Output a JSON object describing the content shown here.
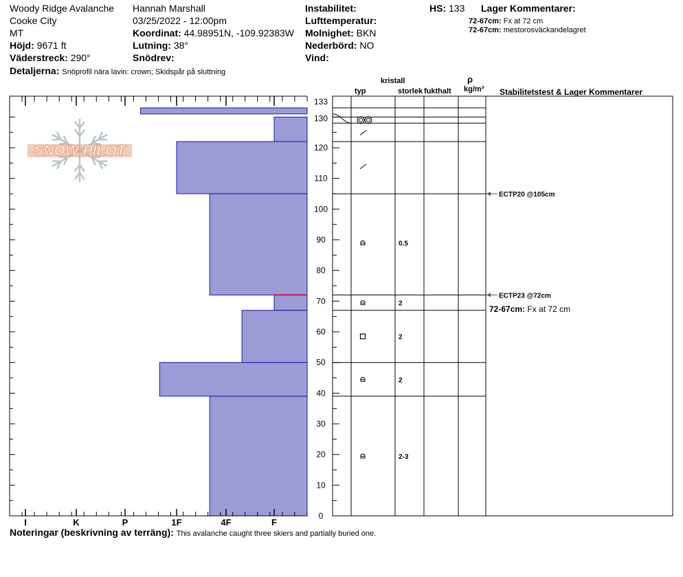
{
  "header": {
    "location": "Woody Ridge Avalanche",
    "area": "Cooke City",
    "state": "MT",
    "elevation_label": "Höjd:",
    "elevation_value": "9671 ft",
    "aspect_label": "Väderstreck:",
    "aspect_value": "290°",
    "observer": "Hannah Marshall",
    "datetime": "03/25/2022 - 12:00pm",
    "coord_label": "Koordinat:",
    "coord_value": "44.98951N, -109.92383W",
    "slope_label": "Lutning:",
    "slope_value": "38°",
    "drift_label": "Snödrev:",
    "drift_value": "",
    "instability_label": "Instabilitet:",
    "airtemp_label": "Lufttemperatur:",
    "cloud_label": "Molnighet:",
    "cloud_value": "BKN",
    "precip_label": "Nederbörd:",
    "precip_value": "NO",
    "wind_label": "Vind:",
    "hs_label": "HS:",
    "hs_value": "133",
    "layer_comments_title": "Lager Kommentarer:",
    "layer_comments": [
      {
        "range": "72-67cm:",
        "text": "Fx at 72 cm"
      },
      {
        "range": "72-67cm:",
        "text": "mestorosväckandelagret"
      }
    ],
    "details_label": "Detaljerna:",
    "details_value": "Snöprofil nära lavin: crown; Skidspår på sluttning"
  },
  "logo_text": "SNOW PILOT",
  "columns": {
    "crystal": "kristall",
    "type": "typ",
    "size": "storlek",
    "moisture": "fukthalt",
    "rho": "ρ",
    "density": "kg/m³",
    "stability": "Stabilitetstest & Lager Kommentarer"
  },
  "notes_label": "Noteringar (beskrivning av terräng):",
  "notes_value": "This avalanche caught three skiers and partially buried one.",
  "chart_data": {
    "type": "snow_profile",
    "hs_cm": 133,
    "y_range_cm": [
      0,
      133
    ],
    "y_ticks": [
      0,
      10,
      20,
      30,
      40,
      50,
      60,
      70,
      80,
      90,
      100,
      110,
      120,
      130,
      133
    ],
    "hardness_scale": [
      "I",
      "K",
      "P",
      "1F",
      "4F",
      "F"
    ],
    "hardness_profile": [
      {
        "top": 133,
        "bottom": 131,
        "hardness": 2.3
      },
      {
        "top": 130,
        "bottom": 122,
        "hardness": 5.0
      },
      {
        "top": 122,
        "bottom": 105,
        "hardness": 3.0
      },
      {
        "top": 105,
        "bottom": 72,
        "hardness": 3.67
      },
      {
        "top": 72,
        "bottom": 67,
        "hardness": 5.0
      },
      {
        "top": 67,
        "bottom": 50,
        "hardness": 4.33
      },
      {
        "top": 50,
        "bottom": 39,
        "hardness": 2.67
      },
      {
        "top": 39,
        "bottom": 0,
        "hardness": 3.67
      }
    ],
    "weak_layer_cm": 72,
    "layer_boundaries_cm": [
      133,
      130,
      128,
      122,
      105,
      72,
      67,
      50,
      39
    ],
    "layers": [
      {
        "mid": 129,
        "type": "precip-icon",
        "size": ""
      },
      {
        "mid": 125,
        "type": "decomposing-icon",
        "size": ""
      },
      {
        "mid": 114,
        "type": "decomposing-icon",
        "size": ""
      },
      {
        "mid": 89,
        "type": "rounded-icon",
        "size": "0.5"
      },
      {
        "mid": 69.5,
        "type": "rounded-icon",
        "size": "2"
      },
      {
        "mid": 58.5,
        "type": "faceted-icon",
        "size": "2"
      },
      {
        "mid": 44.5,
        "type": "rounded-icon",
        "size": "2"
      },
      {
        "mid": 19.5,
        "type": "rounded-icon",
        "size": "2-3"
      }
    ],
    "tests": [
      {
        "depth": 105,
        "label": "ECTP20 @105cm"
      },
      {
        "depth": 72,
        "label": "ECTP23 @72cm"
      }
    ],
    "test_comment": {
      "range": "72-67cm:",
      "text": "Fx at 72 cm"
    },
    "colors": {
      "fill": "#9b9bd6",
      "stroke": "#1a1aa0",
      "weak": "#c0203c",
      "logo": "#e8a080"
    }
  }
}
